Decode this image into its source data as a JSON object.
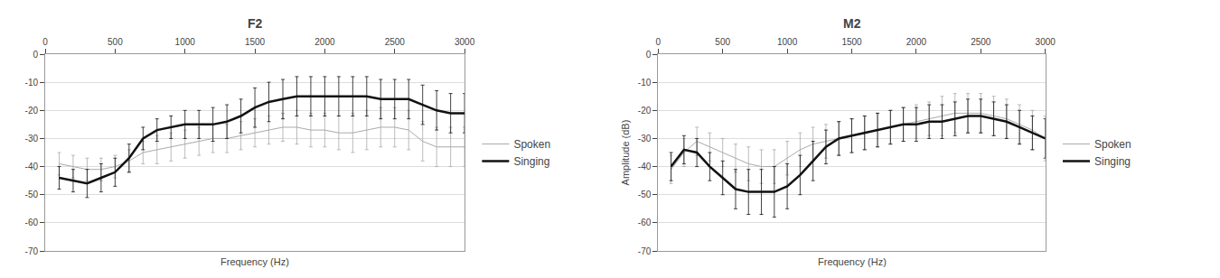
{
  "chart_data": [
    {
      "type": "line",
      "title": "F2",
      "xlabel": "Frequency (Hz)",
      "x": [
        100,
        200,
        300,
        400,
        500,
        600,
        700,
        800,
        900,
        1000,
        1100,
        1200,
        1300,
        1400,
        1500,
        1600,
        1700,
        1800,
        1900,
        2000,
        2100,
        2200,
        2300,
        2400,
        2500,
        2600,
        2700,
        2800,
        2900,
        3000
      ],
      "series": [
        {
          "name": "Spoken",
          "color": "#aaaaaa",
          "values": [
            -39,
            -40,
            -41,
            -41,
            -40,
            -38,
            -35,
            -34,
            -33,
            -32,
            -31,
            -30,
            -30,
            -29,
            -28,
            -27,
            -26,
            -26,
            -27,
            -27,
            -28,
            -28,
            -27,
            -26,
            -26,
            -27,
            -31,
            -33,
            -33,
            -33
          ],
          "errors": [
            4,
            4,
            4,
            4,
            4,
            4,
            4,
            5,
            5,
            5,
            5,
            5,
            5,
            5,
            5,
            5,
            5,
            6,
            6,
            6,
            6,
            7,
            7,
            7,
            7,
            7,
            7,
            7,
            7,
            7
          ]
        },
        {
          "name": "Singing",
          "color": "#111111",
          "values": [
            -44,
            -45,
            -46,
            -44,
            -42,
            -37,
            -30,
            -27,
            -26,
            -25,
            -25,
            -25,
            -24,
            -22,
            -19,
            -17,
            -16,
            -15,
            -15,
            -15,
            -15,
            -15,
            -15,
            -16,
            -16,
            -16,
            -18,
            -20,
            -21,
            -21
          ],
          "errors": [
            4,
            4,
            5,
            5,
            5,
            5,
            4,
            4,
            4,
            5,
            5,
            6,
            6,
            6,
            7,
            7,
            7,
            7,
            7,
            7,
            7,
            7,
            7,
            7,
            7,
            7,
            7,
            7,
            7,
            7
          ]
        }
      ],
      "xlim": [
        0,
        3000
      ],
      "xticks": [
        0,
        500,
        1000,
        1500,
        2000,
        2500,
        3000
      ],
      "ylim": [
        -70,
        0
      ],
      "yticks": [
        0,
        -10,
        -20,
        -30,
        -40,
        -50,
        -60,
        -70
      ],
      "grid": true,
      "legend": "right"
    },
    {
      "type": "line",
      "title": "M2",
      "xlabel": "Frequency (Hz)",
      "ylabel": "Amplitude (dB)",
      "x": [
        100,
        200,
        300,
        400,
        500,
        600,
        700,
        800,
        900,
        1000,
        1100,
        1200,
        1300,
        1400,
        1500,
        1600,
        1700,
        1800,
        1900,
        2000,
        2100,
        2200,
        2300,
        2400,
        2500,
        2600,
        2700,
        2800,
        2900,
        3000
      ],
      "series": [
        {
          "name": "Spoken",
          "color": "#aaaaaa",
          "values": [
            -41,
            -35,
            -31,
            -33,
            -35,
            -37,
            -39,
            -40,
            -40,
            -37,
            -34,
            -32,
            -31,
            -30,
            -29,
            -28,
            -27,
            -26,
            -25,
            -24,
            -23,
            -22,
            -21,
            -21,
            -21,
            -22,
            -23,
            -25,
            -27,
            -30
          ],
          "errors": [
            5,
            5,
            5,
            5,
            5,
            5,
            6,
            6,
            6,
            6,
            6,
            6,
            6,
            6,
            6,
            6,
            6,
            6,
            6,
            6,
            6,
            7,
            7,
            7,
            7,
            7,
            7,
            7,
            7,
            8
          ]
        },
        {
          "name": "Singing",
          "color": "#111111",
          "values": [
            -40,
            -34,
            -35,
            -40,
            -44,
            -48,
            -49,
            -49,
            -49,
            -47,
            -43,
            -38,
            -33,
            -30,
            -29,
            -28,
            -27,
            -26,
            -25,
            -25,
            -24,
            -24,
            -23,
            -22,
            -22,
            -23,
            -24,
            -26,
            -28,
            -30
          ],
          "errors": [
            5,
            5,
            5,
            5,
            6,
            7,
            8,
            8,
            9,
            8,
            7,
            7,
            6,
            6,
            6,
            6,
            6,
            6,
            6,
            6,
            6,
            6,
            6,
            6,
            6,
            6,
            6,
            6,
            6,
            7
          ]
        }
      ],
      "xlim": [
        0,
        3000
      ],
      "xticks": [
        0,
        500,
        1000,
        1500,
        2000,
        2500,
        3000
      ],
      "ylim": [
        -70,
        0
      ],
      "yticks": [
        0,
        -10,
        -20,
        -30,
        -40,
        -50,
        -60,
        -70
      ],
      "grid": true,
      "legend": "right"
    }
  ]
}
